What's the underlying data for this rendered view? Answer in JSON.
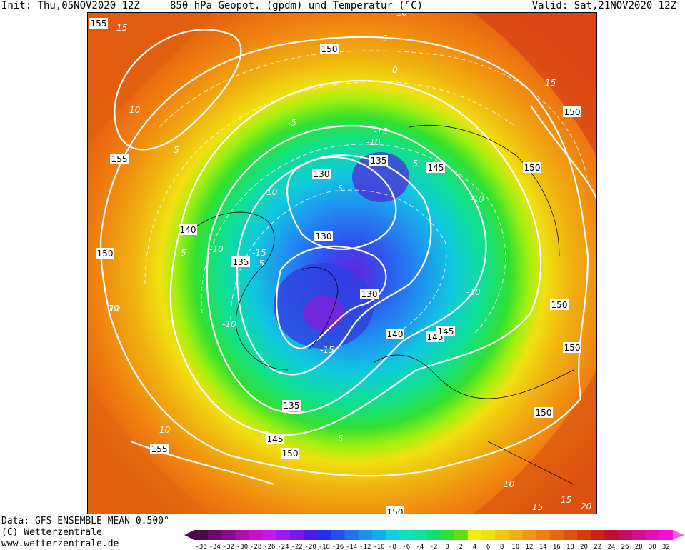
{
  "header": {
    "init": "Init: Thu,05NOV2020 12Z",
    "title": "850 hPa Geopot. (gpdm) und Temperatur (°C)",
    "valid": "Valid: Sat,21NOV2020 12Z"
  },
  "footer": {
    "data": "Data: GFS ENSEMBLE MEAN 0.500°",
    "copyright": "(C) Wetterzentrale",
    "website": "www.wetterzentrale.de"
  },
  "map": {
    "projection": "north-polar-stereographic",
    "geopotential_labels": [
      "150",
      "155",
      "140",
      "150",
      "130",
      "135",
      "130",
      "135",
      "145",
      "150",
      "145",
      "140",
      "145",
      "150",
      "150",
      "155",
      "135",
      "145",
      "150",
      "150",
      "155",
      "130",
      "150",
      "150"
    ],
    "temperature_labels": [
      "15",
      "10",
      "5",
      "-10",
      "10",
      "10",
      "5",
      "-5",
      "-5",
      "15",
      "-10",
      "-15",
      "-10",
      "-5",
      "-5",
      "-10",
      "-10",
      "-15",
      "-15",
      "0",
      "5",
      "10",
      "15",
      "10",
      "15",
      "20",
      "10",
      "10",
      "5",
      "-5",
      "0",
      "5"
    ]
  },
  "colorbar": {
    "ticks": [
      "-36",
      "-34",
      "-32",
      "-30",
      "-28",
      "-26",
      "-24",
      "-22",
      "-20",
      "-18",
      "-16",
      "-14",
      "-12",
      "-10",
      "-8",
      "-6",
      "-4",
      "-2",
      "0",
      "2",
      "4",
      "6",
      "8",
      "10",
      "12",
      "14",
      "16",
      "18",
      "20",
      "22",
      "24",
      "26",
      "28",
      "30",
      "32"
    ],
    "colors": [
      "#4a0a4a",
      "#6a0a6a",
      "#8a0a8a",
      "#aa10aa",
      "#c810c8",
      "#c818e8",
      "#a018f0",
      "#7818f0",
      "#5018f0",
      "#2030f0",
      "#2050f0",
      "#2070f0",
      "#2090f0",
      "#10b0f0",
      "#10d0e0",
      "#10e0c0",
      "#10e0a0",
      "#10e070",
      "#30e030",
      "#60e010",
      "#f0f010",
      "#f0e010",
      "#f0c810",
      "#f0b010",
      "#f09810",
      "#f08010",
      "#e86810",
      "#e05010",
      "#d83810",
      "#d02010",
      "#c01030",
      "#c01060",
      "#d01090",
      "#e010b8",
      "#f010d8",
      "#f060f0"
    ]
  }
}
